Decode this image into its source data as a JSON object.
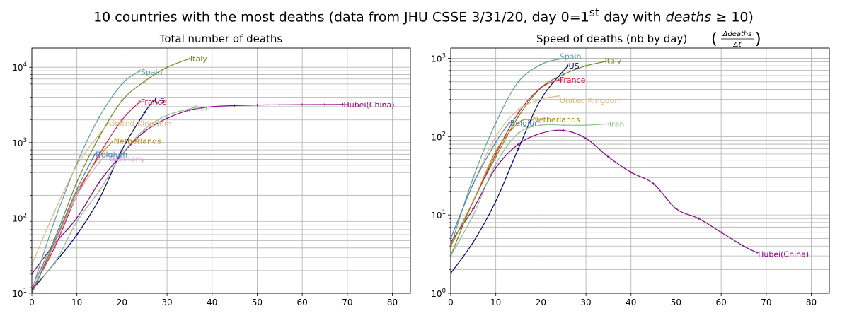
{
  "figure": {
    "suptitle_pre": "10 countries with the most deaths (data from JHU CSSE 3/31/20, day 0=1",
    "suptitle_sup": "st",
    "suptitle_mid": " day with ",
    "suptitle_var": "deaths",
    "suptitle_post": " ≥ 10)"
  },
  "chart_data": [
    {
      "type": "line",
      "title": "Total number of deaths",
      "xlim": [
        0,
        84
      ],
      "xticks": [
        0,
        10,
        20,
        30,
        40,
        50,
        60,
        70,
        80
      ],
      "yscale": "log",
      "ylim": [
        10,
        18000
      ],
      "yticklabels": [
        "10",
        "10",
        "10",
        "10"
      ],
      "ytickexps": [
        "1",
        "2",
        "3",
        "4"
      ],
      "yticks": [
        10,
        100,
        1000,
        10000
      ],
      "grid": true,
      "series": [
        {
          "name": "Hubei(China)",
          "color": "#8b008b",
          "x": [
            0,
            5,
            10,
            15,
            20,
            25,
            30,
            35,
            40,
            45,
            50,
            55,
            60,
            65,
            69
          ],
          "y": [
            18,
            45,
            100,
            300,
            700,
            1400,
            2100,
            2700,
            3000,
            3100,
            3150,
            3180,
            3190,
            3200,
            3210
          ]
        },
        {
          "name": "Italy",
          "color": "#6b8e23",
          "x": [
            0,
            5,
            10,
            15,
            20,
            25,
            30,
            35
          ],
          "y": [
            12,
            52,
            300,
            1200,
            3600,
            6500,
            10000,
            13000
          ]
        },
        {
          "name": "Spain",
          "color": "#5f9ea0",
          "x": [
            0,
            5,
            10,
            15,
            20,
            24
          ],
          "y": [
            11,
            90,
            530,
            2200,
            6000,
            9000
          ]
        },
        {
          "name": "US",
          "color": "#000080",
          "x": [
            0,
            5,
            10,
            15,
            20,
            25,
            27
          ],
          "y": [
            11,
            25,
            60,
            180,
            800,
            2500,
            3600
          ]
        },
        {
          "name": "France",
          "color": "#dc143c",
          "x": [
            0,
            5,
            10,
            15,
            20,
            24
          ],
          "y": [
            11,
            40,
            200,
            700,
            2000,
            3500
          ]
        },
        {
          "name": "Iran",
          "color": "#8fbc8f",
          "x": [
            0,
            5,
            10,
            15,
            20,
            25,
            30,
            36
          ],
          "y": [
            12,
            25,
            90,
            230,
            700,
            1500,
            2300,
            2900
          ]
        },
        {
          "name": "United Kingdom",
          "color": "#deb887",
          "x": [
            0,
            5,
            10,
            15,
            17
          ],
          "y": [
            24,
            120,
            500,
            1300,
            1800
          ]
        },
        {
          "name": "Netherlands",
          "color": "#b8860b",
          "x": [
            0,
            5,
            10,
            15,
            18
          ],
          "y": [
            10,
            45,
            220,
            650,
            1050
          ]
        },
        {
          "name": "Germany",
          "color": "#dda0dd",
          "x": [
            0,
            5,
            10,
            15,
            17
          ],
          "y": [
            12,
            45,
            200,
            550,
            700
          ]
        },
        {
          "name": "Belgium",
          "color": "#4682b4",
          "x": [
            0,
            5,
            10,
            14
          ],
          "y": [
            10,
            48,
            240,
            700
          ]
        }
      ]
    },
    {
      "type": "line",
      "title_pre": "Speed of deaths (nb by day) ",
      "title_num": "Δdeaths",
      "title_den": "Δt",
      "xlim": [
        0,
        84
      ],
      "xticks": [
        0,
        10,
        20,
        30,
        40,
        50,
        60,
        70,
        80
      ],
      "yscale": "log",
      "ylim": [
        1,
        1350
      ],
      "yticklabels": [
        "10",
        "10",
        "10",
        "10"
      ],
      "ytickexps": [
        "0",
        "1",
        "2",
        "3"
      ],
      "yticks": [
        1,
        10,
        100,
        1000
      ],
      "grid": true,
      "series": [
        {
          "name": "Hubei(China)",
          "color": "#8b008b",
          "x": [
            0,
            5,
            10,
            15,
            20,
            25,
            30,
            35,
            40,
            45,
            50,
            55,
            60,
            65,
            68
          ],
          "y": [
            4.5,
            12,
            40,
            80,
            110,
            120,
            95,
            55,
            35,
            25,
            12,
            9,
            6,
            4,
            3.3
          ]
        },
        {
          "name": "Italy",
          "color": "#6b8e23",
          "x": [
            0,
            5,
            10,
            15,
            20,
            25,
            30,
            34
          ],
          "y": [
            3,
            15,
            55,
            180,
            420,
            620,
            800,
            900
          ]
        },
        {
          "name": "Spain",
          "color": "#5f9ea0",
          "x": [
            0,
            5,
            10,
            15,
            20,
            24
          ],
          "y": [
            4,
            30,
            150,
            500,
            830,
            980
          ]
        },
        {
          "name": "US",
          "color": "#000080",
          "x": [
            0,
            5,
            10,
            15,
            20,
            26
          ],
          "y": [
            1.8,
            4.5,
            15,
            70,
            300,
            800
          ]
        },
        {
          "name": "France",
          "color": "#dc143c",
          "x": [
            0,
            5,
            10,
            15,
            20,
            24
          ],
          "y": [
            4,
            15,
            60,
            200,
            420,
            530
          ]
        },
        {
          "name": "United Kingdom",
          "color": "#deb887",
          "x": [
            0,
            5,
            10,
            15,
            20,
            24
          ],
          "y": [
            5,
            25,
            100,
            220,
            300,
            330
          ]
        },
        {
          "name": "Netherlands",
          "color": "#b8860b",
          "x": [
            0,
            5,
            10,
            15,
            18
          ],
          "y": [
            4,
            15,
            65,
            150,
            165
          ]
        },
        {
          "name": "Belgium",
          "color": "#4682b4",
          "x": [
            0,
            5,
            10,
            13
          ],
          "y": [
            5,
            25,
            85,
            150
          ]
        },
        {
          "name": "Iran",
          "color": "#8fbc8f",
          "x": [
            0,
            5,
            10,
            15,
            20,
            25,
            30,
            35
          ],
          "y": [
            3,
            10,
            45,
            110,
            140,
            140,
            140,
            145
          ]
        }
      ]
    }
  ]
}
